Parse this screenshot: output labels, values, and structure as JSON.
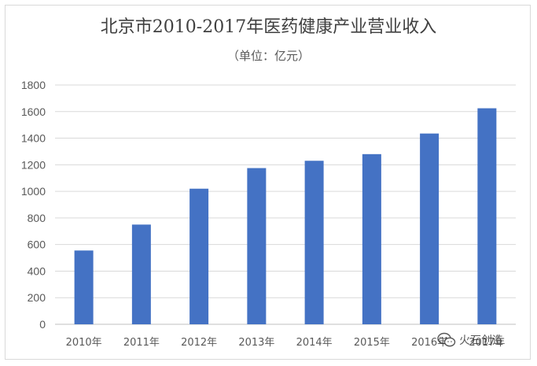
{
  "title": "北京市2010-2017年医药健康产业营业收入",
  "subtitle": "（单位：亿元）",
  "watermark": {
    "text": "火石创造",
    "icon": "wechat-icon"
  },
  "colors": {
    "bar": "#4472c4",
    "grid": "#d9d9d9",
    "axis": "#bfbfbf"
  },
  "chart_data": {
    "type": "bar",
    "categories": [
      "2010年",
      "2011年",
      "2012年",
      "2013年",
      "2014年",
      "2015年",
      "2016年",
      "2017年"
    ],
    "values": [
      555,
      750,
      1020,
      1175,
      1230,
      1280,
      1435,
      1625
    ],
    "ylim": [
      0,
      1800
    ],
    "yticks": [
      0,
      200,
      400,
      600,
      800,
      1000,
      1200,
      1400,
      1600,
      1800
    ],
    "grid": true,
    "legend": "none"
  }
}
